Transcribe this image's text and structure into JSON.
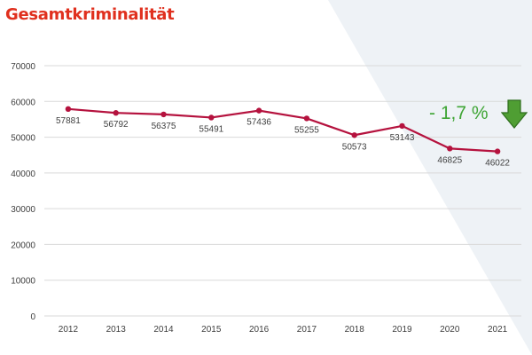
{
  "colors": {
    "title": "#e0301e",
    "line": "#b5123e",
    "badge": "#3fa535",
    "arrow_fill": "#4f9e33",
    "arrow_stroke": "#2f6e1f",
    "bg_panel": "#eef2f6",
    "grid": "#d9d9d9",
    "axis_text": "#404040"
  },
  "badge": {
    "text": "- 1,7 %"
  },
  "icons": {
    "trend": "arrow-down-icon"
  },
  "chart_data": {
    "type": "line",
    "title": "Gesamtkriminalität",
    "categories": [
      "2012",
      "2013",
      "2014",
      "2015",
      "2016",
      "2017",
      "2018",
      "2019",
      "2020",
      "2021"
    ],
    "series": [
      {
        "name": "Gesamtkriminalität",
        "values": [
          57881,
          56792,
          56375,
          55491,
          57436,
          55255,
          50573,
          53143,
          46825,
          46022
        ]
      }
    ],
    "yticks": [
      "0",
      "10000",
      "20000",
      "30000",
      "40000",
      "50000",
      "60000",
      "70000"
    ],
    "ylim": [
      0,
      70000
    ],
    "grid": true,
    "xlabel": "",
    "ylabel": ""
  }
}
